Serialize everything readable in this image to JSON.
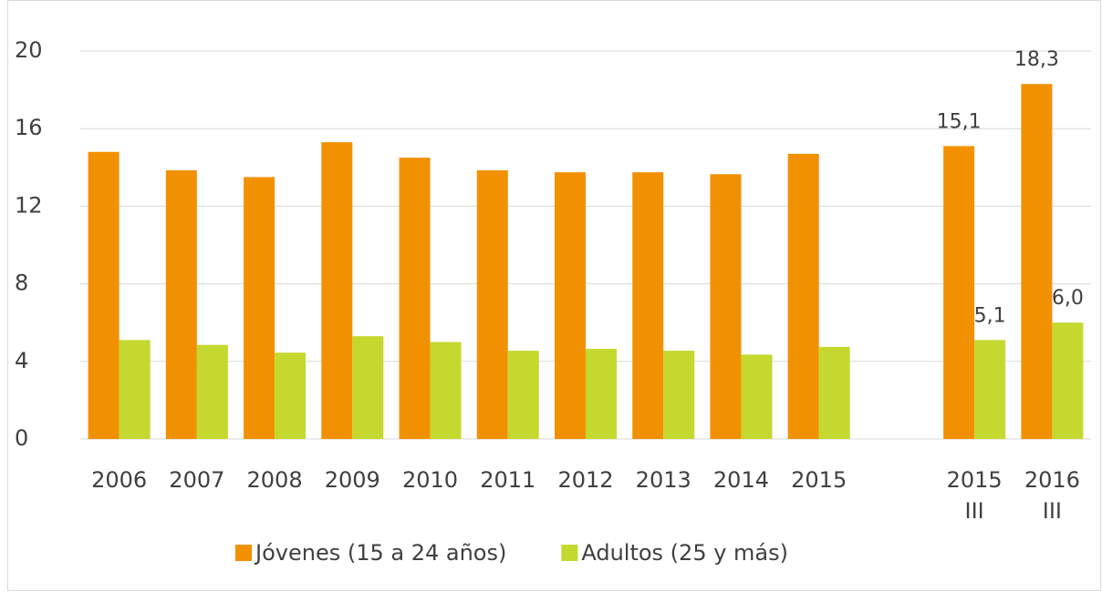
{
  "chart_data": {
    "type": "bar",
    "categories": [
      "2006",
      "2007",
      "2008",
      "2009",
      "2010",
      "2011",
      "2012",
      "2013",
      "2014",
      "2015",
      null,
      "2015\nIII",
      "2016\nIII"
    ],
    "series": [
      {
        "name": "Jóvenes (15 a 24 años)",
        "color": "#f29100",
        "values": [
          14.8,
          13.85,
          13.5,
          15.3,
          14.5,
          13.85,
          13.75,
          13.75,
          13.65,
          14.7,
          null,
          15.1,
          18.3
        ],
        "value_labels": [
          null,
          null,
          null,
          null,
          null,
          null,
          null,
          null,
          null,
          null,
          null,
          "15,1",
          "18,3"
        ]
      },
      {
        "name": "Adultos (25 y más)",
        "color": "#c5d82f",
        "values": [
          5.1,
          4.85,
          4.45,
          5.3,
          5.0,
          4.55,
          4.65,
          4.55,
          4.35,
          4.75,
          null,
          5.1,
          6.0
        ],
        "value_labels": [
          null,
          null,
          null,
          null,
          null,
          null,
          null,
          null,
          null,
          null,
          null,
          "5,1",
          "6,0"
        ]
      }
    ],
    "ylim": [
      0,
      20
    ],
    "yticks": [
      0,
      4,
      8,
      12,
      16,
      20
    ],
    "grid": true,
    "legend": "bottom"
  }
}
